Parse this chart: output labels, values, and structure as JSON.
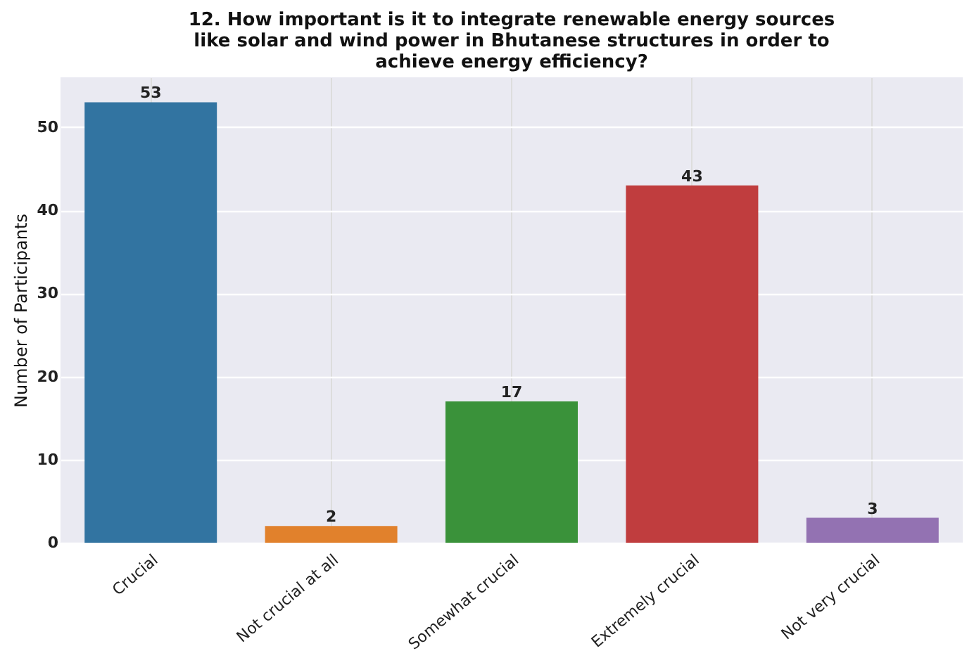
{
  "chart_data": {
    "type": "bar",
    "title": "12. How important is it to integrate renewable energy sources like solar and wind power in Bhutanese structures in order to achieve energy efficiency?",
    "ylabel": "Number of Participants",
    "categories": [
      "Crucial",
      "Not crucial at all",
      "Somewhat crucial",
      "Extremely crucial",
      "Not very crucial"
    ],
    "values": [
      53,
      2,
      17,
      43,
      3
    ],
    "colors": [
      "#3274a1",
      "#e1812c",
      "#3a923a",
      "#c03d3e",
      "#9372b2"
    ],
    "ylim": [
      0,
      56
    ],
    "yticks": [
      0,
      10,
      20,
      30,
      40,
      50
    ],
    "grid": true,
    "data_labels": true,
    "legend": false
  }
}
